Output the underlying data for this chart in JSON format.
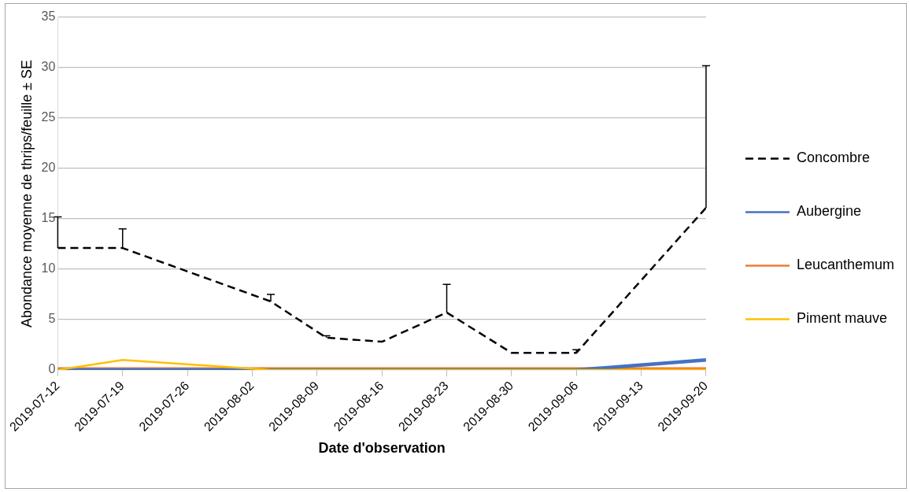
{
  "chart_data": {
    "type": "line",
    "xlabel": "Date d'observation",
    "ylabel": "Abondance moyenne de thrips/feuille ± SE",
    "x": [
      "2019-07-12",
      "2019-07-19",
      "2019-08-04",
      "2019-08-10",
      "2019-08-16",
      "2019-08-23",
      "2019-08-30",
      "2019-09-06",
      "2019-09-20"
    ],
    "series": [
      {
        "name": "Concombre",
        "color": "#000000",
        "line_style": "dashed",
        "values": [
          12.1,
          12.1,
          6.8,
          3.2,
          2.8,
          5.7,
          1.7,
          1.7,
          16.1
        ],
        "errors": [
          [
            12.1,
            15.2
          ],
          [
            12.1,
            14.0
          ],
          [
            6.8,
            7.5
          ],
          [
            3.2,
            3.4
          ],
          null,
          [
            5.7,
            8.5
          ],
          null,
          [
            1.7,
            2.0
          ],
          [
            16.1,
            30.2
          ]
        ]
      },
      {
        "name": "Aubergine",
        "color": "#4472c4",
        "values": [
          0,
          0,
          0,
          0,
          0,
          0,
          0,
          0,
          1.0
        ]
      },
      {
        "name": "Leucanthemum",
        "color": "#ed7d31",
        "values": [
          0,
          0,
          0,
          0,
          0,
          0,
          0,
          0,
          0
        ]
      },
      {
        "name": "Piment mauve",
        "color": "#ffc000",
        "values": [
          0,
          1.0,
          0,
          0,
          0,
          0,
          0,
          0,
          0
        ]
      }
    ],
    "xlim": [
      "2019-07-12",
      "2019-09-20"
    ],
    "xticks": [
      "2019-07-12",
      "2019-07-19",
      "2019-07-26",
      "2019-08-02",
      "2019-08-09",
      "2019-08-16",
      "2019-08-23",
      "2019-08-30",
      "2019-09-06",
      "2019-09-13",
      "2019-09-20"
    ],
    "ylim": [
      0,
      35
    ],
    "yticks": [
      0,
      5,
      10,
      15,
      20,
      25,
      30,
      35
    ],
    "grid": "y",
    "legend": "right",
    "marker": "none",
    "line_style": "solid"
  }
}
